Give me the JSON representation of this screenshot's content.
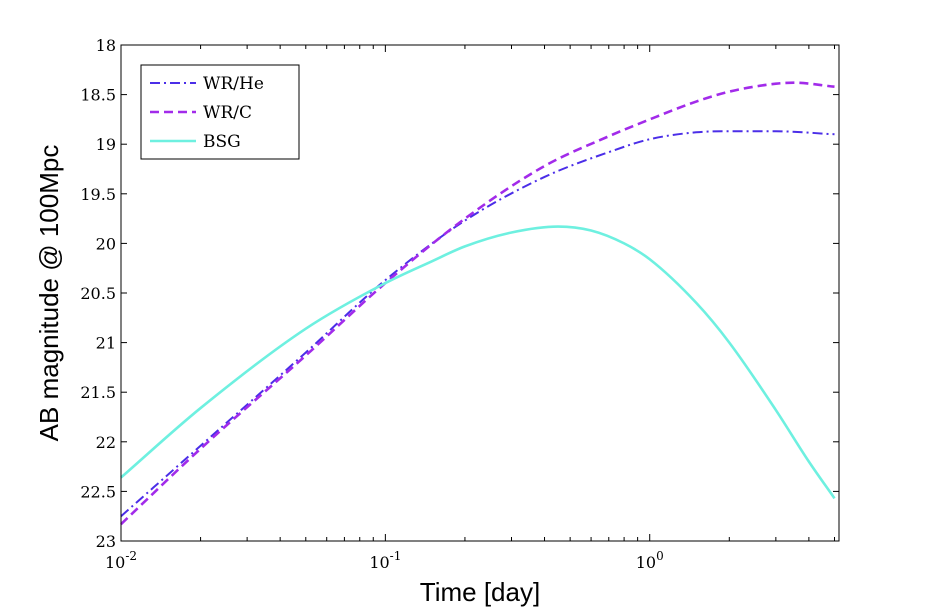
{
  "chart_data": {
    "type": "line",
    "xscale": "log",
    "xlim": [
      0.01,
      5.2
    ],
    "ylim": [
      18,
      23
    ],
    "yaxis_reversed": true,
    "xlabel": "Time [day]",
    "ylabel": "AB magnitude @ 100Mpc",
    "grid": false,
    "legend_position": "top-left",
    "xticks": [
      {
        "value": 0.01,
        "base": "10",
        "exp": "-2"
      },
      {
        "value": 0.1,
        "base": "10",
        "exp": "-1"
      },
      {
        "value": 1,
        "base": "10",
        "exp": "0"
      }
    ],
    "yticks": [
      {
        "value": 18,
        "label": "18"
      },
      {
        "value": 18.5,
        "label": "18.5"
      },
      {
        "value": 19,
        "label": "19"
      },
      {
        "value": 19.5,
        "label": "19.5"
      },
      {
        "value": 20,
        "label": "20"
      },
      {
        "value": 20.5,
        "label": "20.5"
      },
      {
        "value": 21,
        "label": "21"
      },
      {
        "value": 21.5,
        "label": "21.5"
      },
      {
        "value": 22,
        "label": "22"
      },
      {
        "value": 22.5,
        "label": "22.5"
      },
      {
        "value": 23,
        "label": "23"
      }
    ],
    "series": [
      {
        "name": "WR/He",
        "style": "dashdot",
        "color": "#4b2ee8",
        "x": [
          0.01,
          0.02,
          0.05,
          0.1,
          0.2,
          0.4,
          0.7,
          1.0,
          1.5,
          2.0,
          3.0,
          5.0
        ],
        "y": [
          22.75,
          22.04,
          21.1,
          20.37,
          19.77,
          19.33,
          19.08,
          18.95,
          18.88,
          18.87,
          18.87,
          18.9
        ]
      },
      {
        "name": "WR/C",
        "style": "dashed",
        "color": "#a22bea",
        "x": [
          0.01,
          0.02,
          0.05,
          0.1,
          0.2,
          0.4,
          0.7,
          1.0,
          1.5,
          2.0,
          3.0,
          3.5,
          5.0
        ],
        "y": [
          22.83,
          22.07,
          21.13,
          20.4,
          19.75,
          19.22,
          18.92,
          18.75,
          18.57,
          18.47,
          18.39,
          18.38,
          18.42
        ]
      },
      {
        "name": "BSG",
        "style": "solid",
        "color": "#6ef0e0",
        "x": [
          0.01,
          0.02,
          0.05,
          0.1,
          0.15,
          0.2,
          0.3,
          0.45,
          0.6,
          0.8,
          1.0,
          1.5,
          2.0,
          3.0,
          4.0,
          5.0
        ],
        "y": [
          22.36,
          21.66,
          20.86,
          20.4,
          20.18,
          20.03,
          19.89,
          19.83,
          19.87,
          20.0,
          20.16,
          20.6,
          21.0,
          21.68,
          22.2,
          22.57
        ]
      }
    ]
  }
}
